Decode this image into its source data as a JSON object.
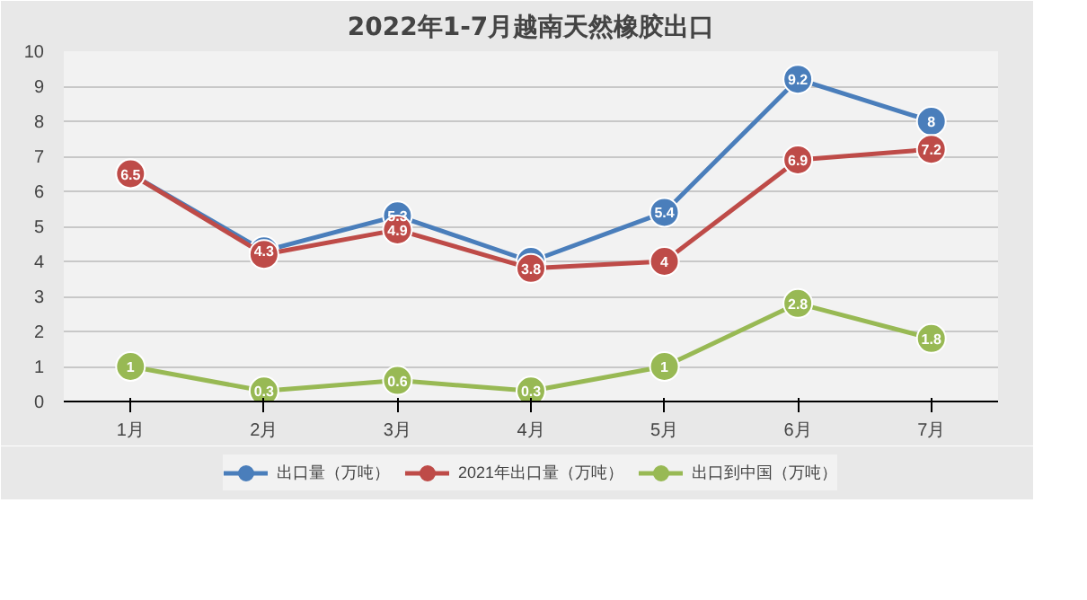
{
  "chart_data": {
    "type": "line",
    "title": "2022年1-7月越南天然橡胶出口",
    "categories": [
      "1月",
      "2月",
      "3月",
      "4月",
      "5月",
      "6月",
      "7月"
    ],
    "series": [
      {
        "name": "出口量（万吨）",
        "color": "#4a7ebb",
        "values": [
          6.5,
          4.3,
          5.3,
          4,
          5.4,
          9.2,
          8
        ],
        "value_labels": [
          null,
          "4.3",
          "5.3",
          null,
          "5.4",
          "9.2",
          "8"
        ]
      },
      {
        "name": "2021年出口量（万吨）",
        "color": "#be4b48",
        "values": [
          6.5,
          4.2,
          4.9,
          3.8,
          4,
          6.9,
          7.2
        ],
        "value_labels": [
          "6.5",
          null,
          "4.9",
          "3.8",
          "4",
          "6.9",
          "7.2"
        ]
      },
      {
        "name": "出口到中国（万吨）",
        "color": "#98b954",
        "values": [
          1,
          0.3,
          0.6,
          0.3,
          1,
          2.8,
          1.8
        ]
      }
    ],
    "ylim": [
      0,
      10
    ],
    "yticks": [
      0,
      1,
      2,
      3,
      4,
      5,
      6,
      7,
      8,
      9,
      10
    ],
    "grid": "y",
    "legend": "bottom",
    "marker": "circle",
    "line_style": "solid",
    "data_labels": true
  }
}
